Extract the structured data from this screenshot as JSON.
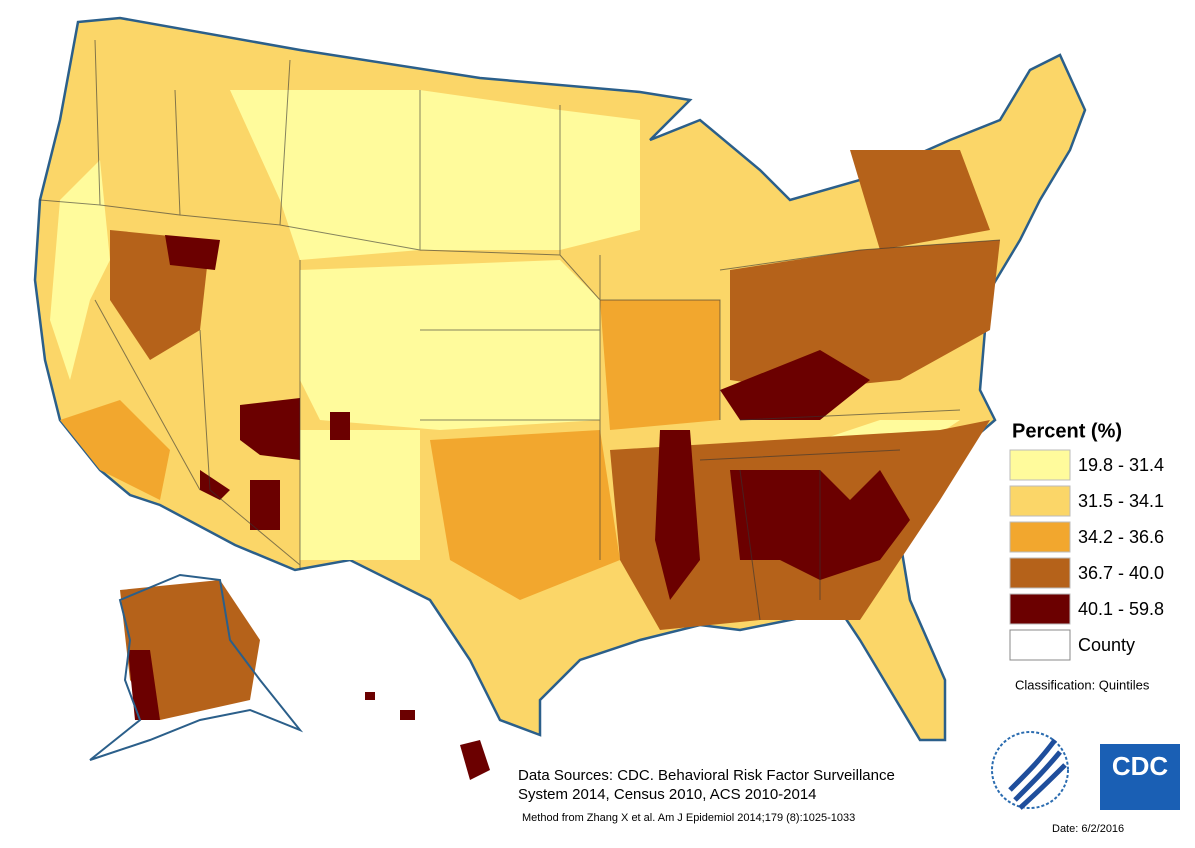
{
  "legend": {
    "title": "Percent (%)",
    "items": [
      {
        "label": "19.8 - 31.4",
        "color": "#fffb9c"
      },
      {
        "label": "31.5 - 34.1",
        "color": "#fbd668"
      },
      {
        "label": "34.2 - 36.6",
        "color": "#f2a72e"
      },
      {
        "label": "36.7 - 40.0",
        "color": "#b5621a"
      },
      {
        "label": "40.1 - 59.8",
        "color": "#6b0000"
      }
    ],
    "county": "County",
    "classification": "Classification: Quintiles"
  },
  "sources": {
    "line1": "Data Sources: CDC. Behavioral Risk Factor Surveillance",
    "line2": "System 2014, Census 2010, ACS 2010-2014",
    "method": "Method from Zhang X et al.  Am J Epidemiol 2014;179 (8):1025-1033"
  },
  "logo": "CDC",
  "date": "Date: 6/2/2016"
}
